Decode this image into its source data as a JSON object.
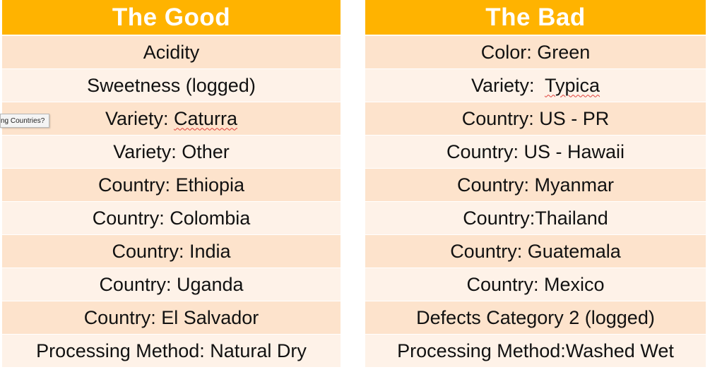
{
  "good": {
    "title": "The Good",
    "rows": [
      {
        "prefix": "Acidity",
        "squiggle": ""
      },
      {
        "prefix": "Sweetness (logged)",
        "squiggle": ""
      },
      {
        "prefix": "Variety: ",
        "squiggle": "Caturra"
      },
      {
        "prefix": "Variety: Other",
        "squiggle": ""
      },
      {
        "prefix": "Country: Ethiopia",
        "squiggle": ""
      },
      {
        "prefix": "Country: Colombia",
        "squiggle": ""
      },
      {
        "prefix": "Country: India",
        "squiggle": ""
      },
      {
        "prefix": "Country: Uganda",
        "squiggle": ""
      },
      {
        "prefix": "Country: El Salvador",
        "squiggle": ""
      },
      {
        "prefix": "Processing Method: Natural Dry",
        "squiggle": ""
      }
    ]
  },
  "bad": {
    "title": "The Bad",
    "rows": [
      {
        "prefix": "Color: Green",
        "squiggle": ""
      },
      {
        "prefix": "Variety:  ",
        "squiggle": "Typica"
      },
      {
        "prefix": "Country: US - PR",
        "squiggle": ""
      },
      {
        "prefix": "Country: US - Hawaii",
        "squiggle": ""
      },
      {
        "prefix": "Country: Myanmar",
        "squiggle": ""
      },
      {
        "prefix": "Country:Thailand",
        "squiggle": ""
      },
      {
        "prefix": "Country: Guatemala",
        "squiggle": ""
      },
      {
        "prefix": "Country: Mexico",
        "squiggle": ""
      },
      {
        "prefix": "Defects Category 2 (logged)",
        "squiggle": ""
      },
      {
        "prefix": "Processing Method:Washed Wet",
        "squiggle": ""
      }
    ]
  },
  "tooltip": {
    "text": "ng Countries?"
  },
  "colors": {
    "header": "#FFB300",
    "row_dark": "#FDE3CC",
    "row_light": "#FEF2E8"
  }
}
